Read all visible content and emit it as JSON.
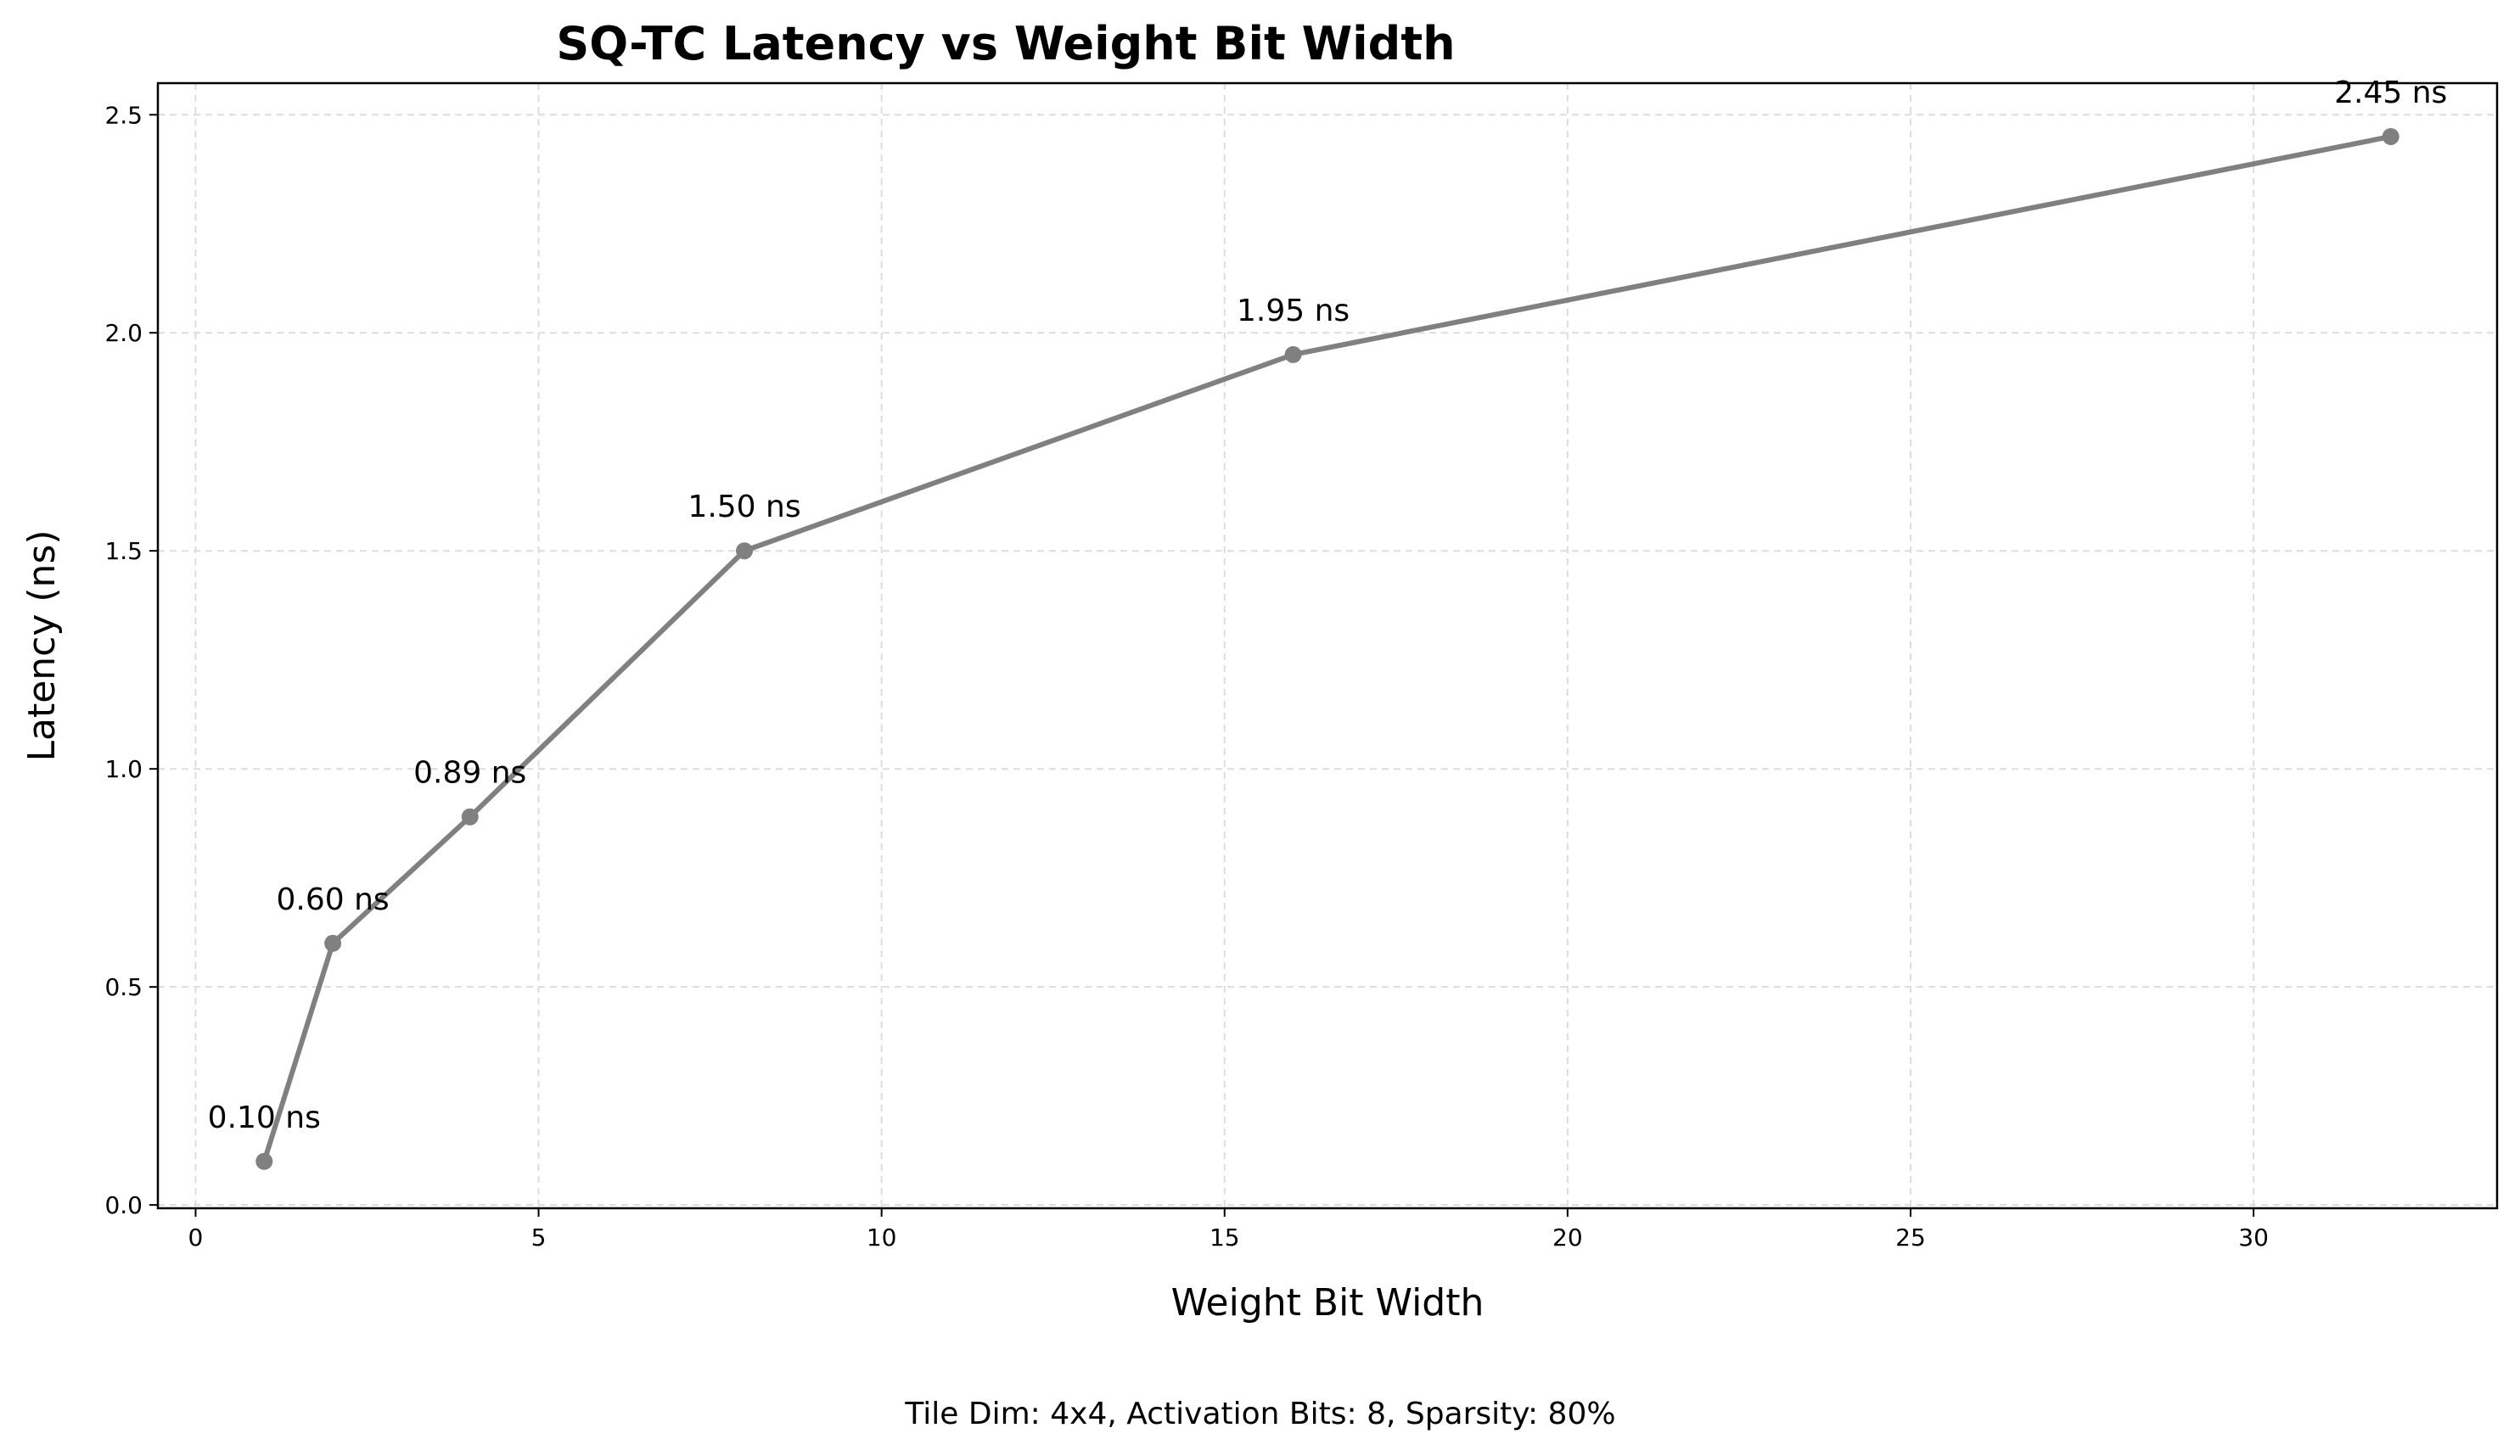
{
  "chart_data": {
    "type": "line",
    "title": "SQ-TC Latency vs Weight Bit Width",
    "xlabel": "Weight Bit Width",
    "ylabel": "Latency (ns)",
    "xlim": [
      -0.55,
      33.55
    ],
    "ylim": [
      -0.0075,
      2.5725
    ],
    "xticks": [
      0,
      5,
      10,
      15,
      20,
      25,
      30
    ],
    "yticks": [
      0.0,
      0.5,
      1.0,
      1.5,
      2.0,
      2.5
    ],
    "grid": true,
    "series": [
      {
        "name": "Latency",
        "color": "#808080",
        "x": [
          1,
          2,
          4,
          8,
          16,
          32
        ],
        "values": [
          0.1,
          0.6,
          0.89,
          1.5,
          1.95,
          2.45
        ],
        "labels": [
          "0.10 ns",
          "0.60 ns",
          "0.89 ns",
          "1.50 ns",
          "1.95 ns",
          "2.45 ns"
        ]
      }
    ],
    "footnote": "Tile Dim: 4x4, Activation Bits: 8, Sparsity: 80%"
  }
}
